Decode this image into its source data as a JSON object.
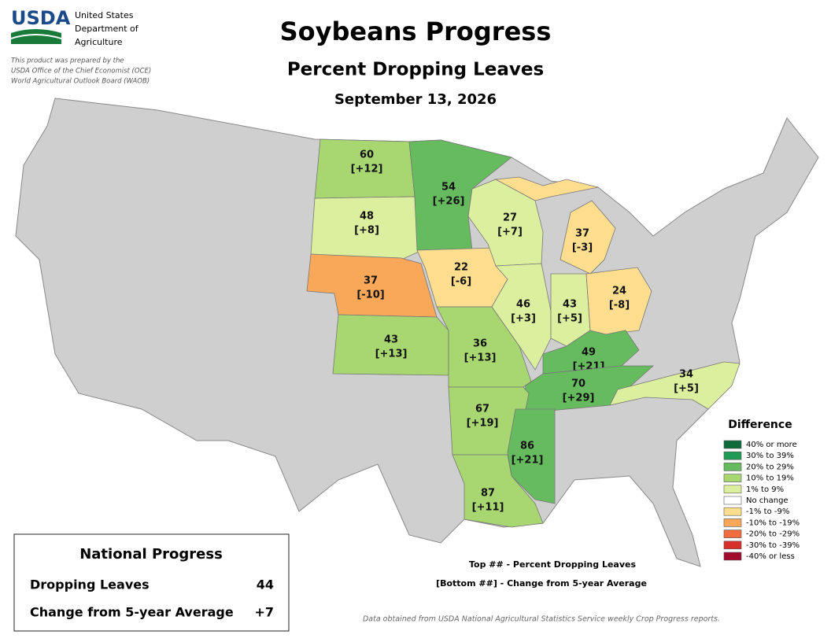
{
  "header": {
    "logo": "USDA",
    "agency": [
      "United States",
      "Department of",
      "Agriculture"
    ],
    "disclaimer": [
      "This product was prepared by the",
      "USDA Office of the Chief Economist (OCE)",
      "World Agricultural Outlook Board (WAOB)"
    ],
    "title": "Soybeans Progress",
    "subtitle": "Percent Dropping Leaves",
    "date": "September 13, 2026"
  },
  "states": [
    {
      "value": 60,
      "change": "[+12]",
      "color": "#a8d771"
    },
    {
      "value": 48,
      "change": "[+8]",
      "color": "#dcef9e"
    },
    {
      "value": 37,
      "change": "[-10]",
      "color": "#f9a85a"
    },
    {
      "value": 43,
      "change": "[+13]",
      "color": "#a8d771"
    },
    {
      "value": 54,
      "change": "[+26]",
      "color": "#66bb5f"
    },
    {
      "value": 22,
      "change": "[-6]",
      "color": "#fdde8f"
    },
    {
      "value": 36,
      "change": "[+13]",
      "color": "#a8d771"
    },
    {
      "value": 27,
      "change": "[+7]",
      "color": "#dcef9e"
    },
    {
      "value": 46,
      "change": "[+3]",
      "color": "#dcef9e"
    },
    {
      "value": 43,
      "change": "[+5]",
      "color": "#dcef9e"
    },
    {
      "value": 24,
      "change": "[-8]",
      "color": "#fdde8f"
    },
    {
      "value": 37,
      "change": "[-3]",
      "color": "#fdde8f"
    },
    {
      "value": 49,
      "change": "[+21]",
      "color": "#66bb5f"
    },
    {
      "value": 70,
      "change": "[+29]",
      "color": "#66bb5f"
    },
    {
      "value": 67,
      "change": "[+19]",
      "color": "#a8d771"
    },
    {
      "value": 86,
      "change": "[+21]",
      "color": "#66bb5f"
    },
    {
      "value": 87,
      "change": "[+11]",
      "color": "#a8d771"
    },
    {
      "value": 34,
      "change": "[+5]",
      "color": "#dcef9e"
    }
  ],
  "legend": {
    "title": "Difference",
    "items": [
      {
        "label": "40% or more",
        "color": "#0d6b3a"
      },
      {
        "label": "30% to 39%",
        "color": "#1f9a55"
      },
      {
        "label": "20% to 29%",
        "color": "#66bb5f"
      },
      {
        "label": "10% to 19%",
        "color": "#a8d771"
      },
      {
        "label": "1% to 9%",
        "color": "#dcef9e"
      },
      {
        "label": "No change",
        "color": "#ffffff"
      },
      {
        "label": "-1% to -9%",
        "color": "#fdde8f"
      },
      {
        "label": "-10% to -19%",
        "color": "#f9a85a"
      },
      {
        "label": "-20% to -29%",
        "color": "#f06c3e"
      },
      {
        "label": "-30% to -39%",
        "color": "#d7302a"
      },
      {
        "label": "-40% or less",
        "color": "#a10b2e"
      }
    ]
  },
  "key": [
    "Top ## - Percent Dropping Leaves",
    "[Bottom ##] - Change from 5-year Average"
  ],
  "national": {
    "title": "National Progress",
    "rows": [
      [
        "Dropping Leaves",
        "44"
      ],
      [
        "Change from 5-year Average",
        "+7"
      ]
    ]
  },
  "footer": "Data obtained from USDA National Agricultural Statistics Service weekly Crop Progress reports."
}
